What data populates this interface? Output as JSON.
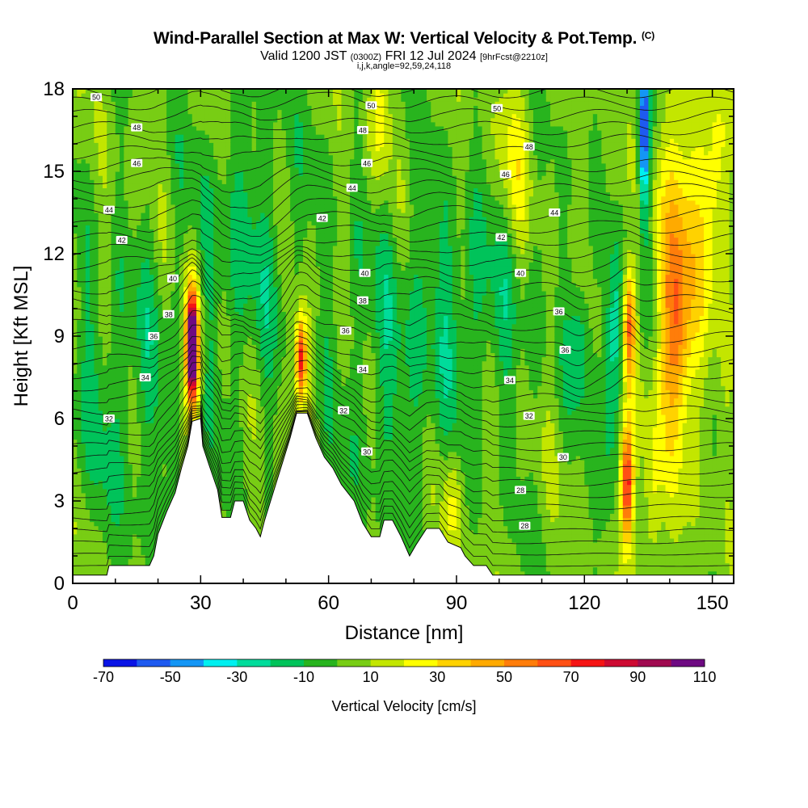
{
  "title": {
    "main": "Wind-Parallel Section at Max W: Vertical Velocity & Pot.Temp.",
    "copyright": "(C)"
  },
  "subtitle": {
    "valid": "Valid 1200 JST",
    "utc": "(0300Z)",
    "date": "FRI 12 Jul 2024",
    "forecast": "[9hrFcst@2210z]",
    "indices": "i,j,k,angle=92,59,24,118"
  },
  "chart_data": {
    "type": "heatmap",
    "xlabel": "Distance [nm]",
    "ylabel": "Height [Kft MSL]",
    "xlim": [
      0,
      155
    ],
    "ylim": [
      0,
      18
    ],
    "x_ticks": [
      "0",
      "30",
      "60",
      "90",
      "120",
      "150"
    ],
    "y_ticks": [
      "0",
      "3",
      "6",
      "9",
      "12",
      "15",
      "18"
    ],
    "colorbar": {
      "label": "Vertical Velocity [cm/s]",
      "tick_labels": [
        "-70",
        "-50",
        "-30",
        "-10",
        "10",
        "30",
        "50",
        "70",
        "90",
        "110"
      ],
      "bounds": [
        -70,
        -60,
        -50,
        -40,
        -30,
        -20,
        -10,
        0,
        10,
        20,
        30,
        40,
        50,
        60,
        70,
        80,
        90,
        100,
        110
      ],
      "colors": [
        "#0a14e6",
        "#1e5af0",
        "#1496f5",
        "#00f0f0",
        "#00dc9b",
        "#00c35a",
        "#28b41e",
        "#78cd14",
        "#c3e600",
        "#ffff00",
        "#ffd200",
        "#ffaa00",
        "#ff7d0a",
        "#ff5014",
        "#f51414",
        "#cd0a32",
        "#a00a50",
        "#6e0a82"
      ]
    },
    "terrain_kft": [
      {
        "x": 0,
        "h": 0.3
      },
      {
        "x": 8,
        "h": 0.3
      },
      {
        "x": 8.5,
        "h": 0.65
      },
      {
        "x": 18,
        "h": 0.65
      },
      {
        "x": 19,
        "h": 1.0
      },
      {
        "x": 20,
        "h": 1.8
      },
      {
        "x": 22,
        "h": 2.6
      },
      {
        "x": 24,
        "h": 3.3
      },
      {
        "x": 25.5,
        "h": 4.2
      },
      {
        "x": 27,
        "h": 5.0
      },
      {
        "x": 28,
        "h": 5.9
      },
      {
        "x": 30,
        "h": 6.0
      },
      {
        "x": 30.5,
        "h": 5.0
      },
      {
        "x": 32,
        "h": 4.3
      },
      {
        "x": 34,
        "h": 3.4
      },
      {
        "x": 35,
        "h": 2.4
      },
      {
        "x": 37,
        "h": 2.4
      },
      {
        "x": 38,
        "h": 3.0
      },
      {
        "x": 40,
        "h": 3.0
      },
      {
        "x": 41.5,
        "h": 2.3
      },
      {
        "x": 43,
        "h": 2.0
      },
      {
        "x": 44,
        "h": 1.7
      },
      {
        "x": 45,
        "h": 2.3
      },
      {
        "x": 47,
        "h": 3.3
      },
      {
        "x": 49,
        "h": 4.3
      },
      {
        "x": 51,
        "h": 5.3
      },
      {
        "x": 52.5,
        "h": 6.2
      },
      {
        "x": 55,
        "h": 6.2
      },
      {
        "x": 57,
        "h": 5.3
      },
      {
        "x": 59,
        "h": 4.6
      },
      {
        "x": 61,
        "h": 4.2
      },
      {
        "x": 63,
        "h": 3.6
      },
      {
        "x": 66,
        "h": 3.0
      },
      {
        "x": 68,
        "h": 2.2
      },
      {
        "x": 70,
        "h": 1.7
      },
      {
        "x": 72,
        "h": 1.7
      },
      {
        "x": 73,
        "h": 2.3
      },
      {
        "x": 75,
        "h": 2.3
      },
      {
        "x": 77,
        "h": 1.7
      },
      {
        "x": 79,
        "h": 1.0
      },
      {
        "x": 80.5,
        "h": 1.4
      },
      {
        "x": 83,
        "h": 2.0
      },
      {
        "x": 86,
        "h": 2.0
      },
      {
        "x": 88,
        "h": 1.5
      },
      {
        "x": 91,
        "h": 1.3
      },
      {
        "x": 92,
        "h": 1.0
      },
      {
        "x": 94,
        "h": 0.65
      },
      {
        "x": 97,
        "h": 0.65
      },
      {
        "x": 98.5,
        "h": 0.3
      },
      {
        "x": 155,
        "h": 0.3
      }
    ],
    "theta_contours_K": [
      28,
      30,
      32,
      34,
      36,
      38,
      40,
      42,
      44,
      46,
      48,
      50
    ],
    "contour_labels": [
      {
        "x": 5.5,
        "y": 17.7,
        "t": "50"
      },
      {
        "x": 15,
        "y": 16.6,
        "t": "48"
      },
      {
        "x": 15,
        "y": 15.3,
        "t": "46"
      },
      {
        "x": 8.5,
        "y": 13.6,
        "t": "44"
      },
      {
        "x": 11.5,
        "y": 12.5,
        "t": "42"
      },
      {
        "x": 23.5,
        "y": 11.1,
        "t": "40"
      },
      {
        "x": 22.5,
        "y": 9.8,
        "t": "38"
      },
      {
        "x": 19,
        "y": 9.0,
        "t": "36"
      },
      {
        "x": 17,
        "y": 7.5,
        "t": "34"
      },
      {
        "x": 8.5,
        "y": 6.0,
        "t": "32"
      },
      {
        "x": 70,
        "y": 17.4,
        "t": "50"
      },
      {
        "x": 68,
        "y": 16.5,
        "t": "48"
      },
      {
        "x": 69,
        "y": 15.3,
        "t": "46"
      },
      {
        "x": 65.5,
        "y": 14.4,
        "t": "44"
      },
      {
        "x": 58.5,
        "y": 13.3,
        "t": "42"
      },
      {
        "x": 68.5,
        "y": 11.3,
        "t": "40"
      },
      {
        "x": 68,
        "y": 10.3,
        "t": "38"
      },
      {
        "x": 64,
        "y": 9.2,
        "t": "36"
      },
      {
        "x": 68,
        "y": 7.8,
        "t": "34"
      },
      {
        "x": 63.5,
        "y": 6.3,
        "t": "32"
      },
      {
        "x": 69,
        "y": 4.8,
        "t": "30"
      },
      {
        "x": 99.5,
        "y": 17.3,
        "t": "50"
      },
      {
        "x": 107,
        "y": 15.9,
        "t": "48"
      },
      {
        "x": 101.5,
        "y": 14.9,
        "t": "46"
      },
      {
        "x": 113,
        "y": 13.5,
        "t": "44"
      },
      {
        "x": 100.5,
        "y": 12.6,
        "t": "42"
      },
      {
        "x": 105,
        "y": 11.3,
        "t": "40"
      },
      {
        "x": 114,
        "y": 9.9,
        "t": "36"
      },
      {
        "x": 115.5,
        "y": 8.5,
        "t": "36"
      },
      {
        "x": 102.5,
        "y": 7.4,
        "t": "34"
      },
      {
        "x": 107,
        "y": 6.1,
        "t": "32"
      },
      {
        "x": 115,
        "y": 4.6,
        "t": "30"
      },
      {
        "x": 105,
        "y": 3.4,
        "t": "28"
      },
      {
        "x": 106,
        "y": 2.1,
        "t": "28"
      }
    ]
  }
}
